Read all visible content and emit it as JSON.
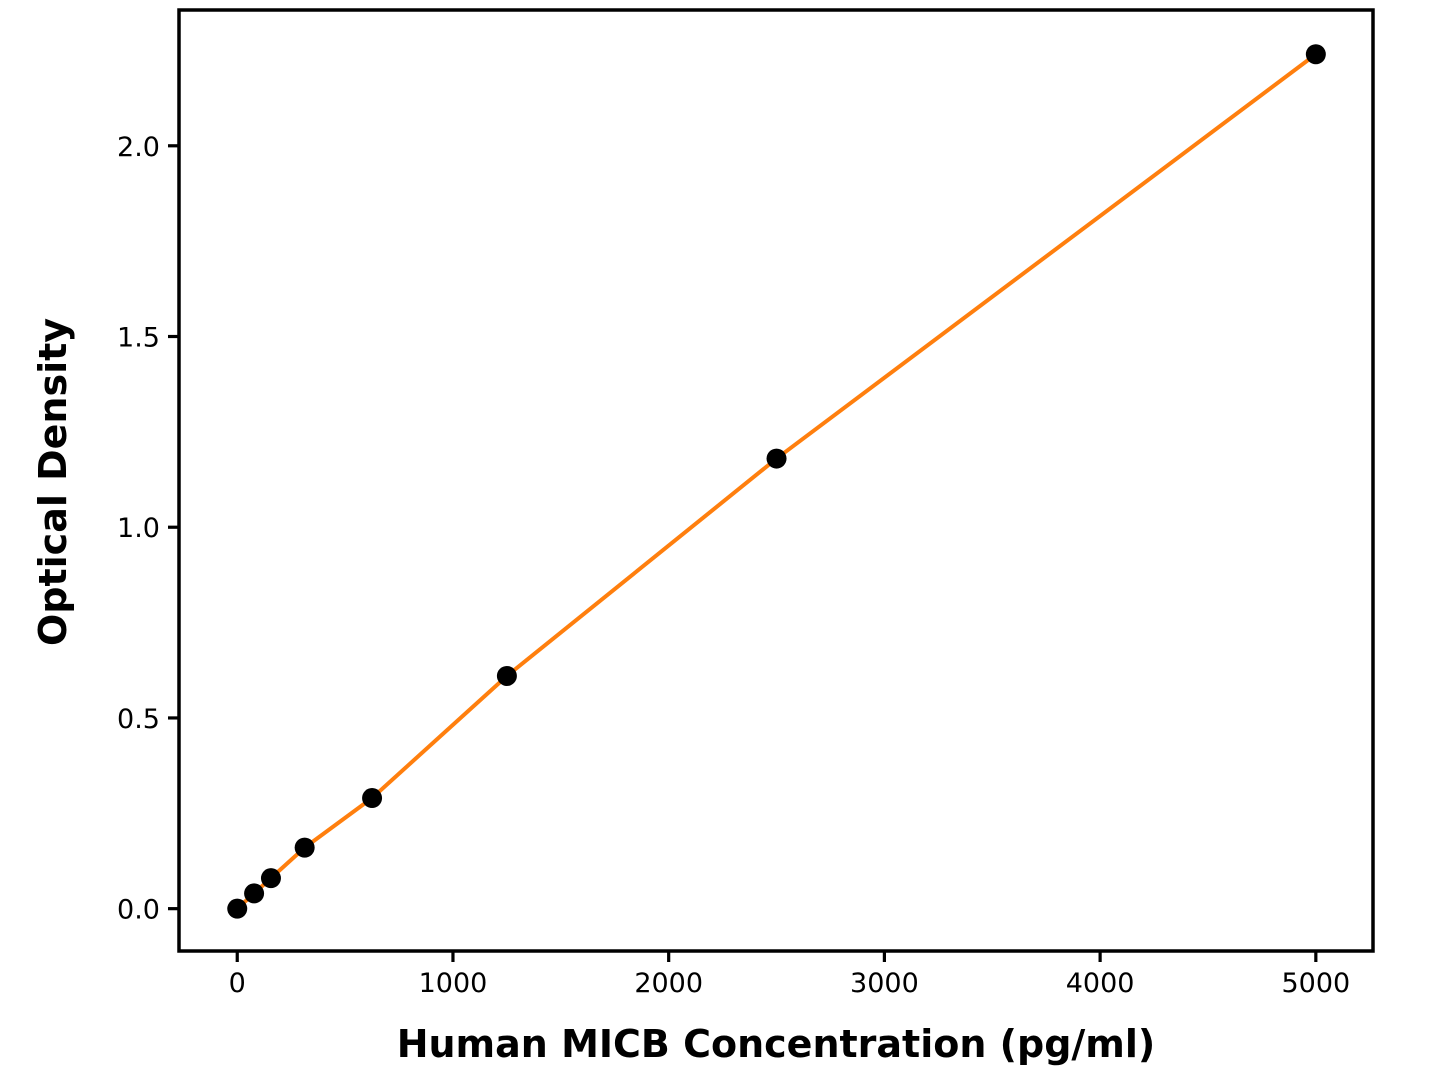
{
  "chart_data": {
    "type": "line",
    "title": "",
    "xlabel": "Human MICB Concentration (pg/ml)",
    "ylabel": "Optical Density",
    "x": [
      0,
      78.1,
      156.3,
      312.5,
      625,
      1250,
      2500,
      5000
    ],
    "y": [
      0.0,
      0.04,
      0.08,
      0.16,
      0.29,
      0.61,
      1.18,
      2.24
    ],
    "x_ticks": [
      0,
      1000,
      2000,
      3000,
      4000,
      5000
    ],
    "x_tick_labels": [
      "0",
      "1000",
      "2000",
      "3000",
      "4000",
      "5000"
    ],
    "y_ticks": [
      0.0,
      0.5,
      1.0,
      1.5,
      2.0
    ],
    "y_tick_labels": [
      "0.0",
      "0.5",
      "1.0",
      "1.5",
      "2.0"
    ],
    "xlim": [
      -270,
      5265
    ],
    "ylim": [
      -0.111,
      2.356
    ],
    "grid": false,
    "legend": null,
    "markers": true,
    "marker_size": 10,
    "line_width": 4,
    "line_color": "#ff7f0e",
    "marker_color": "#000000",
    "axis_color": "#000000",
    "background_color": "#ffffff"
  }
}
